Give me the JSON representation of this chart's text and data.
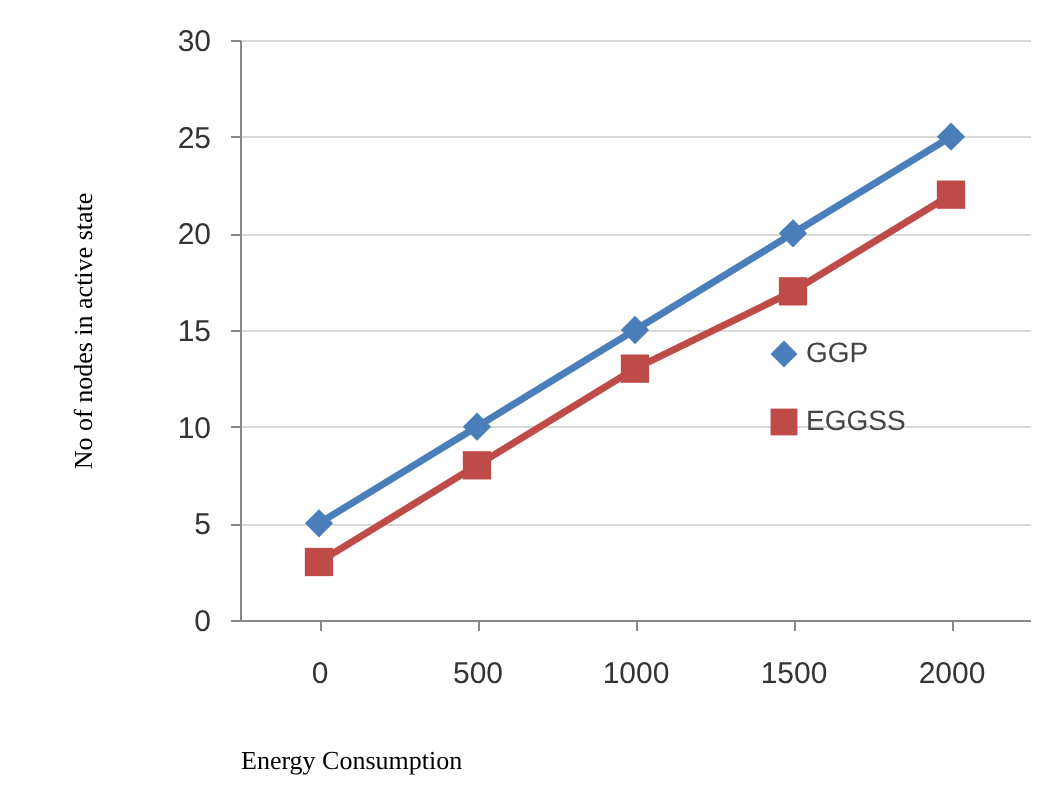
{
  "chart_data": {
    "type": "line",
    "xlabel": "Energy Consumption",
    "ylabel": "No of nodes in active state",
    "categories": [
      "0",
      "500",
      "1000",
      "1500",
      "2000"
    ],
    "series": [
      {
        "name": "GGP",
        "color": "#4a7ebb",
        "marker": "diamond",
        "values": [
          5,
          10,
          15,
          20,
          25
        ]
      },
      {
        "name": "EGGSS",
        "color": "#be4b48",
        "marker": "square",
        "values": [
          3,
          8,
          13,
          17,
          22
        ]
      }
    ],
    "ylim": [
      0,
      30
    ],
    "yticks": [
      0,
      5,
      10,
      15,
      20,
      25,
      30
    ],
    "grid": "y",
    "legend": "right",
    "line_style": "solid"
  }
}
